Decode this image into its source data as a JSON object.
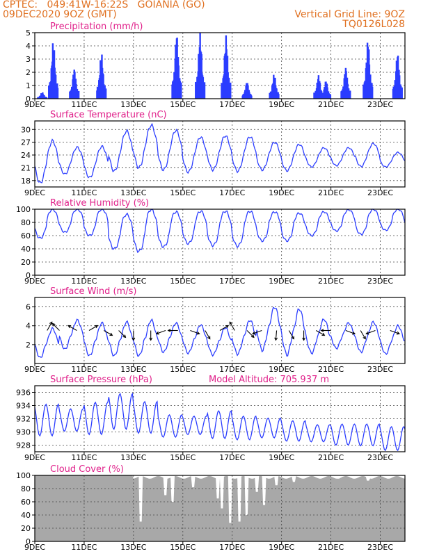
{
  "header": {
    "line1_left": "CPTEC:   049:41W-16:22S   GOIANIA (GO)",
    "line2_left": "09DEC2020 9OZ (GMT)",
    "line2_right": "Vertical Grid Line: 9OZ",
    "line3_right": "TQ0126L028"
  },
  "colors": {
    "header": "#e07020",
    "title": "#e0208a",
    "series": "#2b3dff",
    "cloud": "#a8a8a8",
    "arrow": "#000000"
  },
  "x_axis": {
    "tick_labels": [
      "9DEC",
      "11DEC",
      "13DEC",
      "15DEC",
      "17DEC",
      "19DEC",
      "21DEC",
      "23DEC"
    ],
    "tick_days": [
      0,
      2,
      4,
      6,
      8,
      10,
      12,
      14
    ],
    "range_days": [
      0,
      15
    ]
  },
  "chart_data": [
    {
      "id": "precip",
      "type": "bar",
      "title": "Precipitation (mm/h)",
      "ylim": [
        0,
        5
      ],
      "yticks": [
        "0",
        "1",
        "2",
        "3",
        "4",
        "5"
      ],
      "ytick_values": [
        0,
        1,
        2,
        3,
        4,
        5
      ],
      "bursts": [
        {
          "day": 0.3,
          "peak": 0.5
        },
        {
          "day": 0.75,
          "peak": 4.4
        },
        {
          "day": 1.6,
          "peak": 2.3
        },
        {
          "day": 2.7,
          "peak": 3.5
        },
        {
          "day": 5.75,
          "peak": 5.0
        },
        {
          "day": 6.7,
          "peak": 5.0
        },
        {
          "day": 7.75,
          "peak": 4.8
        },
        {
          "day": 8.6,
          "peak": 1.3
        },
        {
          "day": 9.7,
          "peak": 1.9
        },
        {
          "day": 11.5,
          "peak": 1.8
        },
        {
          "day": 11.8,
          "peak": 1.4
        },
        {
          "day": 12.6,
          "peak": 2.4
        },
        {
          "day": 13.5,
          "peak": 4.5
        },
        {
          "day": 14.7,
          "peak": 3.5
        }
      ]
    },
    {
      "id": "temp",
      "type": "line",
      "title": "Surface Temperature (nC)",
      "ylim": [
        16.5,
        32
      ],
      "yticks": [
        "18",
        "21",
        "24",
        "27",
        "30"
      ],
      "ytick_values": [
        18,
        21,
        24,
        27,
        30
      ],
      "daily_max": [
        27.3,
        25.8,
        26.0,
        29.6,
        31.0,
        29.8,
        28.2,
        28.5,
        28.3,
        27.0,
        26.5,
        25.7,
        25.7,
        26.7,
        24.6
      ],
      "daily_min": [
        17.4,
        19.5,
        18.7,
        20.2,
        21.0,
        20.5,
        20.0,
        20.5,
        20.2,
        20.5,
        20.3,
        21.2,
        21.5,
        21.3,
        21.2
      ]
    },
    {
      "id": "rh",
      "type": "line",
      "title": "Relative Humidity (%)",
      "ylim": [
        0,
        100
      ],
      "yticks": [
        "0",
        "20",
        "40",
        "60",
        "80",
        "100"
      ],
      "ytick_values": [
        0,
        20,
        40,
        60,
        80,
        100
      ],
      "daily_max": [
        100,
        100,
        100,
        92,
        100,
        96,
        97,
        97,
        97,
        96,
        94,
        96,
        99,
        100,
        100
      ],
      "daily_min": [
        56,
        65,
        60,
        40,
        36,
        43,
        48,
        45,
        44,
        52,
        52,
        60,
        67,
        62,
        68
      ]
    },
    {
      "id": "wind",
      "type": "line",
      "title": "Surface Wind (m/s)",
      "ylim": [
        0,
        7
      ],
      "yticks": [
        "2",
        "4",
        "6"
      ],
      "ytick_values": [
        2,
        4,
        6
      ],
      "daily_max": [
        3.7,
        4.6,
        4.3,
        4.4,
        4.6,
        4.3,
        4.1,
        3.8,
        4.6,
        6.0,
        5.8,
        4.7,
        4.3,
        4.4,
        4.0
      ],
      "daily_min": [
        0.6,
        1.5,
        0.8,
        0.8,
        0.8,
        1.2,
        1.1,
        0.9,
        1.0,
        1.4,
        0.9,
        1.1,
        1.6,
        1.2,
        1.0
      ],
      "arrows": [
        {
          "day": 0.5,
          "dir": 60
        },
        {
          "day": 1.0,
          "dir": 135
        },
        {
          "day": 1.7,
          "dir": 150
        },
        {
          "day": 2.2,
          "dir": 30
        },
        {
          "day": 2.8,
          "dir": -30
        },
        {
          "day": 3.4,
          "dir": -45
        },
        {
          "day": 4.0,
          "dir": -90
        },
        {
          "day": 4.7,
          "dir": -90
        },
        {
          "day": 5.3,
          "dir": 200
        },
        {
          "day": 5.8,
          "dir": 180
        },
        {
          "day": 6.3,
          "dir": -20
        },
        {
          "day": 6.9,
          "dir": -60
        },
        {
          "day": 7.5,
          "dir": 30
        },
        {
          "day": 8.1,
          "dir": 120
        },
        {
          "day": 8.6,
          "dir": -45
        },
        {
          "day": 9.2,
          "dir": 200
        },
        {
          "day": 9.8,
          "dir": -95
        },
        {
          "day": 10.3,
          "dir": -60
        },
        {
          "day": 10.9,
          "dir": -90
        },
        {
          "day": 11.4,
          "dir": -30
        },
        {
          "day": 12.0,
          "dir": 180
        },
        {
          "day": 12.6,
          "dir": -20
        },
        {
          "day": 13.2,
          "dir": -60
        },
        {
          "day": 13.8,
          "dir": 200
        },
        {
          "day": 14.4,
          "dir": -20
        }
      ]
    },
    {
      "id": "pres",
      "type": "line",
      "title": "Surface Pressure (hPa)",
      "extra_label": "Model Altitude: 705.937 m",
      "ylim": [
        927,
        937
      ],
      "yticks": [
        "928",
        "930",
        "932",
        "934",
        "936"
      ],
      "ytick_values": [
        928,
        930,
        932,
        934,
        936
      ],
      "daily_max": [
        934.2,
        933.5,
        934.5,
        935.8,
        934.6,
        932.6,
        932.4,
        933.2,
        932.4,
        932.1,
        931.7,
        931.1,
        931.2,
        931.2,
        930.8
      ],
      "daily_min": [
        929.4,
        930.1,
        929.6,
        930.4,
        929.8,
        929.2,
        929.6,
        929.0,
        928.8,
        929.1,
        928.6,
        928.5,
        928.0,
        927.9,
        927.2
      ]
    },
    {
      "id": "cloud",
      "type": "area",
      "title": "Cloud Cover (%)",
      "ylim": [
        0,
        100
      ],
      "yticks": [
        "0",
        "20",
        "40",
        "60",
        "80",
        "100"
      ],
      "ytick_values": [
        0,
        20,
        40,
        60,
        80,
        100
      ],
      "level_pre": 100,
      "level_post": 97,
      "change_day": 4.0,
      "dips": [
        {
          "day": 4.3,
          "value": 30
        },
        {
          "day": 5.3,
          "value": 70
        },
        {
          "day": 5.6,
          "value": 60
        },
        {
          "day": 6.4,
          "value": 82
        },
        {
          "day": 7.4,
          "value": 65
        },
        {
          "day": 7.6,
          "value": 50
        },
        {
          "day": 7.9,
          "value": 28
        },
        {
          "day": 8.3,
          "value": 30
        },
        {
          "day": 8.6,
          "value": 40
        },
        {
          "day": 9.0,
          "value": 75
        },
        {
          "day": 9.3,
          "value": 55
        },
        {
          "day": 9.8,
          "value": 85
        },
        {
          "day": 10.5,
          "value": 90
        },
        {
          "day": 12.3,
          "value": 95
        },
        {
          "day": 13.5,
          "value": 92
        }
      ]
    }
  ]
}
